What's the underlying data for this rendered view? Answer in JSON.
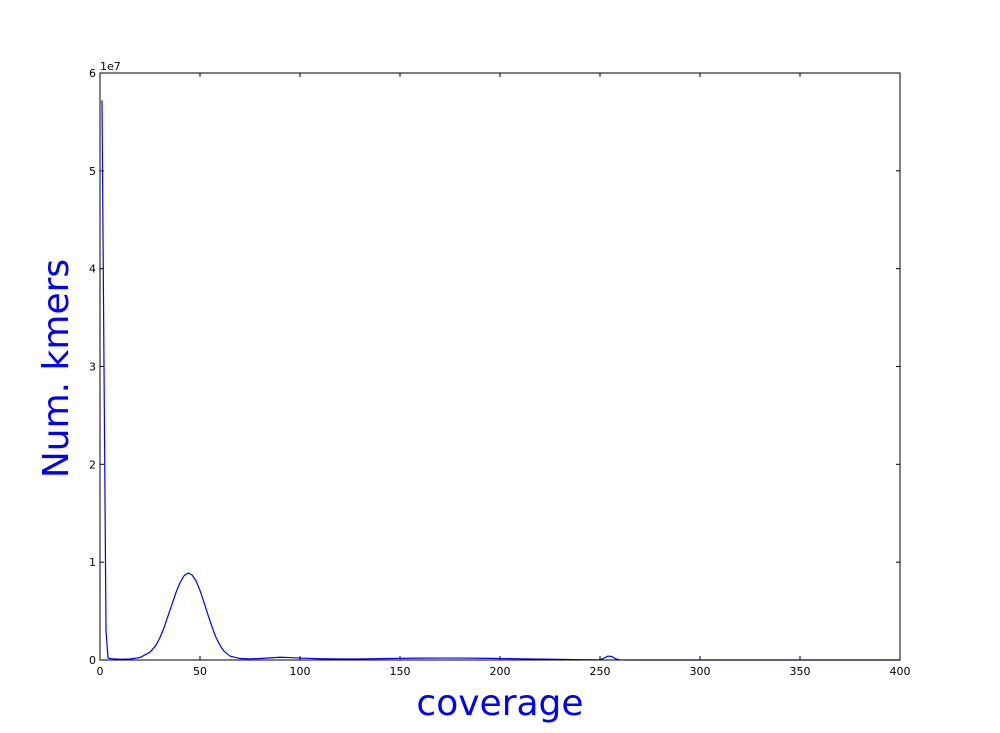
{
  "chart_data": {
    "type": "line",
    "title": "",
    "xlabel": "coverage",
    "ylabel": "Num. kmers",
    "y_offset_label": "1e7",
    "xlim": [
      0,
      400
    ],
    "ylim": [
      0,
      60000000
    ],
    "xticks": [
      0,
      50,
      100,
      150,
      200,
      250,
      300,
      350,
      400
    ],
    "xtick_labels": [
      "0",
      "50",
      "100",
      "150",
      "200",
      "250",
      "300",
      "350",
      "400"
    ],
    "yticks": [
      0,
      10000000,
      20000000,
      30000000,
      40000000,
      50000000,
      60000000
    ],
    "ytick_labels": [
      "0",
      "1",
      "2",
      "3",
      "4",
      "5",
      "6"
    ],
    "grid": false,
    "legend": "none",
    "colors": {
      "line": "#0000ff",
      "axis_label": "#0000ff",
      "frame": "#000000"
    },
    "series": [
      {
        "x": [
          1,
          2,
          3,
          4,
          5,
          6,
          10,
          15,
          20,
          25,
          28,
          30,
          32,
          34,
          36,
          38,
          40,
          42,
          44,
          46,
          48,
          50,
          52,
          54,
          56,
          58,
          60,
          62,
          65,
          70,
          75,
          80,
          85,
          90,
          95,
          100,
          110,
          120,
          130,
          140,
          150,
          160,
          170,
          180,
          190,
          200,
          210,
          220,
          230,
          240,
          250,
          252,
          254,
          256,
          258,
          260,
          270,
          280,
          300,
          320,
          340,
          360,
          380,
          400
        ],
        "y": [
          57200000,
          30000000,
          3000000,
          200000,
          150000,
          120000,
          80000,
          100000,
          250000,
          800000,
          1500000,
          2300000,
          3300000,
          4500000,
          5700000,
          6900000,
          7900000,
          8600000,
          8900000,
          8700000,
          8100000,
          7100000,
          5900000,
          4600000,
          3400000,
          2300000,
          1500000,
          900000,
          400000,
          150000,
          120000,
          150000,
          220000,
          280000,
          250000,
          200000,
          130000,
          100000,
          110000,
          140000,
          170000,
          190000,
          200000,
          200000,
          180000,
          150000,
          120000,
          90000,
          60000,
          30000,
          20000,
          200000,
          400000,
          350000,
          100000,
          5000,
          3000,
          2000,
          1000,
          800,
          600,
          400,
          300,
          200
        ]
      }
    ]
  }
}
